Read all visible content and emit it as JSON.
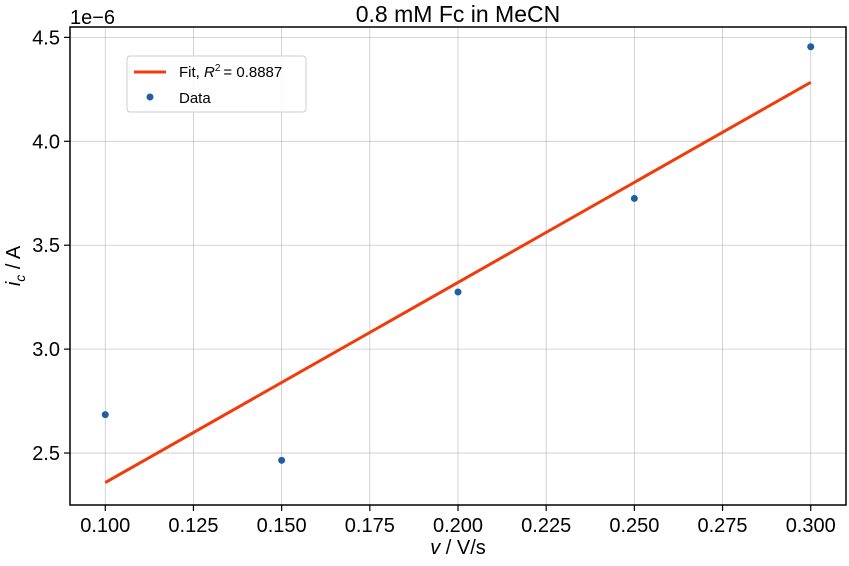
{
  "chart_data": {
    "type": "scatter",
    "title": "0.8 mM Fc in MeCN",
    "xlabel": {
      "var": "v",
      "unit": " / V/s"
    },
    "ylabel": {
      "var": "i",
      "sub": "c",
      "unit": " / A"
    },
    "y_offset_text": "1e−6",
    "xlim": [
      0.09,
      0.31
    ],
    "ylim": [
      2.25,
      4.55
    ],
    "x_ticks": [
      0.1,
      0.125,
      0.15,
      0.175,
      0.2,
      0.225,
      0.25,
      0.275,
      0.3
    ],
    "x_tick_labels": [
      "0.100",
      "0.125",
      "0.150",
      "0.175",
      "0.200",
      "0.225",
      "0.250",
      "0.275",
      "0.300"
    ],
    "y_ticks": [
      2.5,
      3.0,
      3.5,
      4.0,
      4.5
    ],
    "y_tick_labels": [
      "2.5",
      "3.0",
      "3.5",
      "4.0",
      "4.5"
    ],
    "grid": true,
    "legend_position": "top-left",
    "series": [
      {
        "name": "Data",
        "kind": "scatter",
        "color": "#1f5fa0",
        "x": [
          0.1,
          0.15,
          0.2,
          0.25,
          0.3
        ],
        "y": [
          2.685,
          2.465,
          3.275,
          3.725,
          4.455
        ]
      },
      {
        "name": "Fit",
        "kind": "line",
        "color": "#f03c0c",
        "r2_label": "R",
        "r2_sup": "2",
        "r2_value": "= 0.8887",
        "x": [
          0.1,
          0.3
        ],
        "y": [
          2.358,
          4.284
        ]
      }
    ]
  }
}
